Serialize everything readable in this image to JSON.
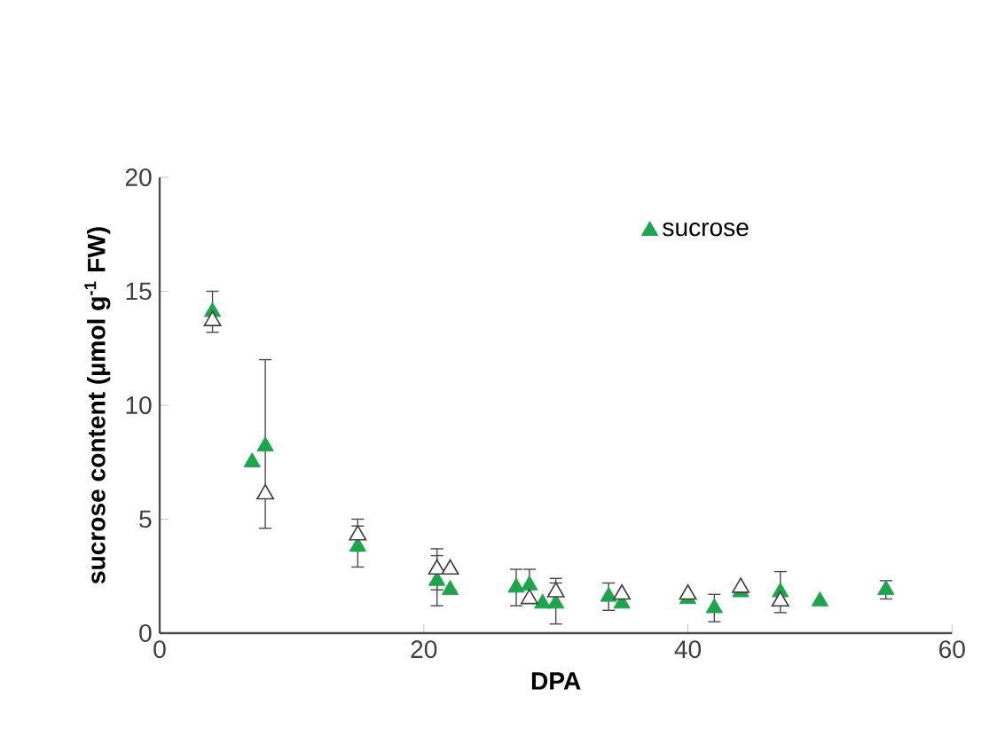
{
  "chart_data": {
    "type": "scatter",
    "xlabel": "DPA",
    "ylabel": "sucrose content (µmol g$^{-1}$ FW)",
    "xlim": [
      0,
      60
    ],
    "xticks": [
      0,
      20,
      40,
      60
    ],
    "ylim": [
      0,
      20
    ],
    "yticks": [
      0,
      5,
      10,
      15,
      20
    ],
    "grid": false,
    "legend": "top right",
    "marker": "triangle",
    "series": [
      {
        "name": "sucrose",
        "color": "#1aa64a",
        "x": [
          4,
          7,
          8,
          15,
          21,
          22,
          27,
          28,
          29,
          30,
          34,
          35,
          40,
          42,
          44,
          47,
          50,
          55
        ],
        "values": [
          14.1,
          7.5,
          8.2,
          3.8,
          2.3,
          1.9,
          2.0,
          2.1,
          1.3,
          1.3,
          1.6,
          1.3,
          1.5,
          1.1,
          1.8,
          1.8,
          1.4,
          1.9
        ],
        "errors": [
          0.9,
          null,
          null,
          0.9,
          1.1,
          null,
          0.8,
          0.7,
          null,
          0.9,
          0.6,
          null,
          null,
          0.6,
          null,
          0.9,
          null,
          0.4
        ]
      },
      {
        "color": "#404040",
        "x": [
          4,
          8,
          15,
          21,
          22,
          28,
          30,
          35,
          40,
          44,
          47
        ],
        "values": [
          13.7,
          6.1,
          4.3,
          2.8,
          2.8,
          1.5,
          1.8,
          1.7,
          1.7,
          2.0,
          1.4
        ],
        "errors": [
          null,
          [
            4.6,
            12.0
          ],
          0.7,
          0.9,
          null,
          null,
          0.6,
          null,
          null,
          null,
          null
        ]
      }
    ]
  }
}
